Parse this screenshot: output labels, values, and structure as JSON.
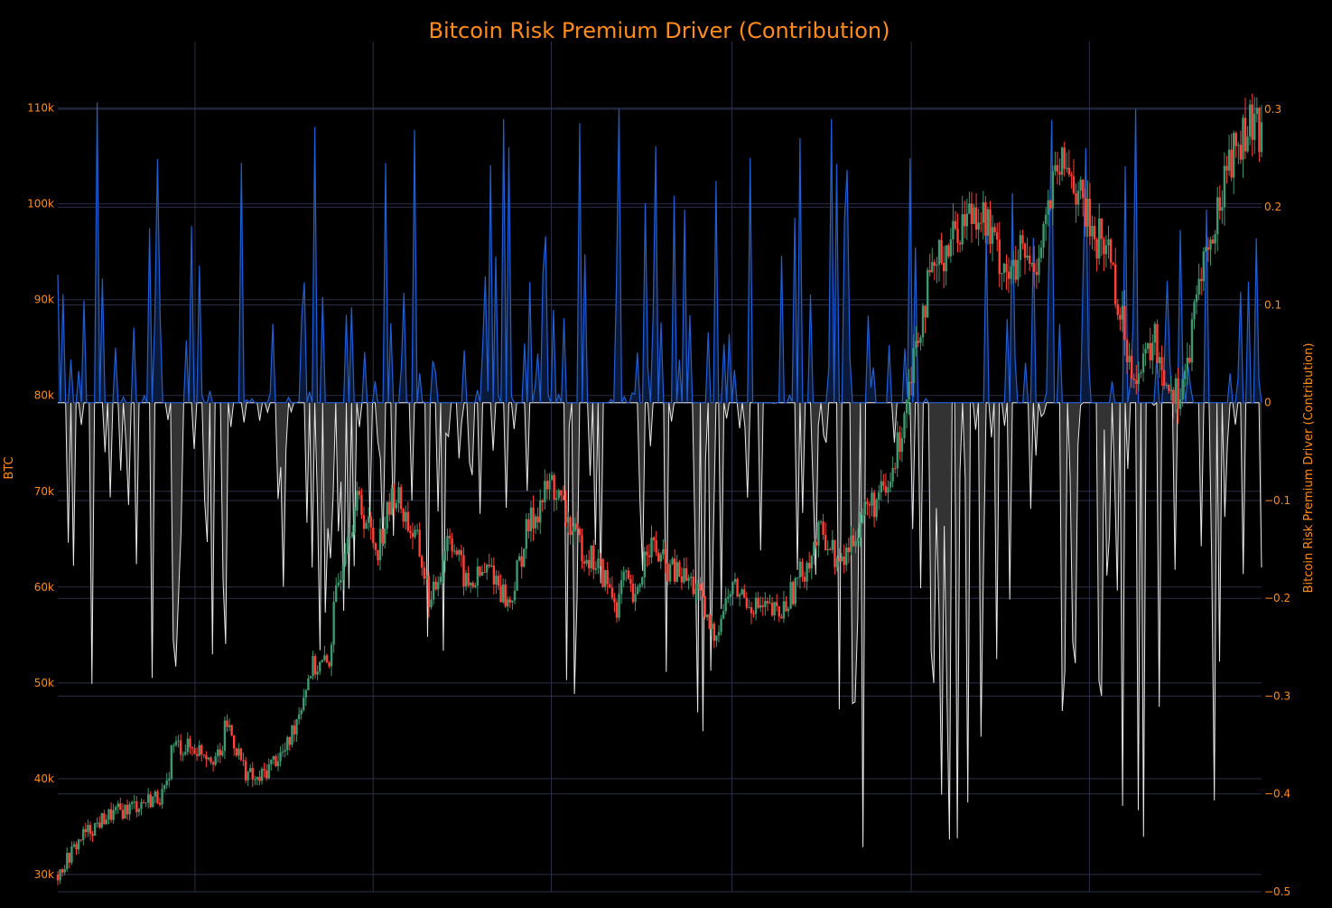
{
  "chart_data": {
    "type": "line",
    "title": "Bitcoin Risk Premium Driver (Contribution)",
    "left_axis": {
      "label": "BTC",
      "ticks": [
        "30k",
        "40k",
        "50k",
        "60k",
        "70k",
        "80k",
        "90k",
        "100k",
        "110k"
      ],
      "tick_values": [
        30000,
        40000,
        50000,
        60000,
        70000,
        80000,
        90000,
        100000,
        110000
      ],
      "range": [
        28200,
        116000
      ]
    },
    "right_axis": {
      "label": "Bitcoin Risk Premium Driver (Contribution)",
      "ticks": [
        "0.3",
        "0.2",
        "0.1",
        "0",
        "−0.1",
        "−0.2",
        "−0.3",
        "−0.4",
        "−0.5"
      ],
      "tick_values": [
        0.3,
        0.2,
        0.1,
        0,
        -0.1,
        -0.2,
        -0.3,
        -0.4,
        -0.5
      ],
      "range": [
        -0.5,
        0.36
      ]
    },
    "grid": true,
    "x_tick_labels": [],
    "series": [
      {
        "type": "candlestick",
        "axis": "left",
        "up_color": "#3d9970",
        "down_color": "#ff4136",
        "close_anchors": [
          [
            0,
            30000
          ],
          [
            0.02,
            34000
          ],
          [
            0.04,
            36000
          ],
          [
            0.07,
            37500
          ],
          [
            0.09,
            38500
          ],
          [
            0.095,
            43500
          ],
          [
            0.12,
            43000
          ],
          [
            0.135,
            42000
          ],
          [
            0.14,
            46000
          ],
          [
            0.155,
            41000
          ],
          [
            0.165,
            39500
          ],
          [
            0.18,
            42000
          ],
          [
            0.19,
            43000
          ],
          [
            0.2,
            47000
          ],
          [
            0.21,
            51500
          ],
          [
            0.225,
            52000
          ],
          [
            0.23,
            58000
          ],
          [
            0.24,
            66000
          ],
          [
            0.25,
            69000
          ],
          [
            0.265,
            64000
          ],
          [
            0.28,
            70000
          ],
          [
            0.3,
            64000
          ],
          [
            0.31,
            58000
          ],
          [
            0.325,
            66000
          ],
          [
            0.34,
            60000
          ],
          [
            0.36,
            62000
          ],
          [
            0.375,
            58000
          ],
          [
            0.39,
            66000
          ],
          [
            0.41,
            71000
          ],
          [
            0.43,
            65000
          ],
          [
            0.45,
            62000
          ],
          [
            0.465,
            58000
          ],
          [
            0.47,
            61000
          ],
          [
            0.48,
            58000
          ],
          [
            0.49,
            65000
          ],
          [
            0.505,
            62000
          ],
          [
            0.52,
            61000
          ],
          [
            0.53,
            60000
          ],
          [
            0.54,
            56000
          ],
          [
            0.545,
            55000
          ],
          [
            0.56,
            60000
          ],
          [
            0.58,
            58000
          ],
          [
            0.6,
            57000
          ],
          [
            0.62,
            62000
          ],
          [
            0.635,
            66000
          ],
          [
            0.65,
            62000
          ],
          [
            0.67,
            68000
          ],
          [
            0.69,
            70000
          ],
          [
            0.7,
            76000
          ],
          [
            0.71,
            84000
          ],
          [
            0.72,
            90000
          ],
          [
            0.735,
            95000
          ],
          [
            0.75,
            98000
          ],
          [
            0.765,
            100000
          ],
          [
            0.78,
            95000
          ],
          [
            0.795,
            92000
          ],
          [
            0.8,
            95000
          ],
          [
            0.81,
            93000
          ],
          [
            0.82,
            98000
          ],
          [
            0.83,
            103000
          ],
          [
            0.84,
            104000
          ],
          [
            0.85,
            100000
          ],
          [
            0.86,
            97000
          ],
          [
            0.875,
            95000
          ],
          [
            0.88,
            90000
          ],
          [
            0.89,
            84000
          ],
          [
            0.9,
            82000
          ],
          [
            0.91,
            86000
          ],
          [
            0.92,
            82000
          ],
          [
            0.93,
            80000
          ],
          [
            0.94,
            84000
          ],
          [
            0.95,
            94000
          ],
          [
            0.96,
            96000
          ],
          [
            0.97,
            104000
          ],
          [
            0.98,
            106000
          ],
          [
            0.99,
            108000
          ],
          [
            1.0,
            107000
          ]
        ]
      },
      {
        "type": "area",
        "axis": "right",
        "name_shown": false,
        "positive_line_color": "#1f5fd6",
        "positive_fill_color": "#0a1a3d",
        "negative_line_color": "#e8e8e8",
        "negative_fill_color": "#333333",
        "baseline": 0
      }
    ]
  }
}
